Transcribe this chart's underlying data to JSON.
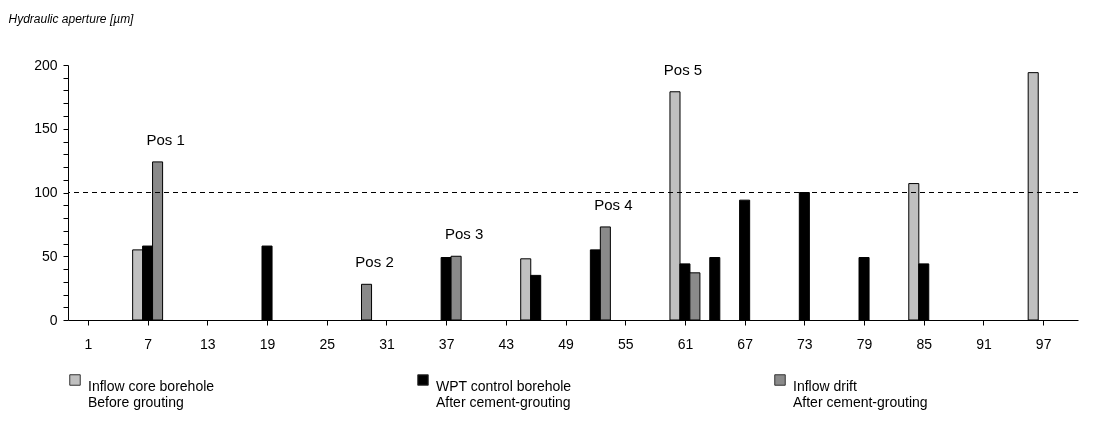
{
  "chart_data": {
    "type": "bar",
    "ylabel": "Hydraulic aperture [µm]",
    "xlim": [
      -0.5,
      100
    ],
    "xticks": [
      1,
      7,
      13,
      19,
      25,
      31,
      37,
      43,
      49,
      55,
      61,
      67,
      73,
      79,
      85,
      91,
      97
    ],
    "ylim": [
      0,
      200
    ],
    "yticks": [
      0,
      {
        "value": 10,
        "label": null
      },
      {
        "value": 20,
        "label": null
      },
      {
        "value": 30,
        "label": null
      },
      {
        "value": 40,
        "label": null
      },
      50,
      {
        "value": 60,
        "label": null
      },
      {
        "value": 70,
        "label": null
      },
      {
        "value": 80,
        "label": null
      },
      {
        "value": 90,
        "label": null
      },
      100,
      {
        "value": 110,
        "label": null
      },
      {
        "value": 120,
        "label": null
      },
      {
        "value": 130,
        "label": null
      },
      {
        "value": 140,
        "label": null
      },
      150,
      {
        "value": 160,
        "label": null
      },
      {
        "value": 170,
        "label": null
      },
      {
        "value": 180,
        "label": null
      },
      {
        "value": 190,
        "label": null
      },
      200
    ],
    "series": [
      {
        "name": "Inflow core borehole\nBefore grouting",
        "color": "#c0c0c0",
        "x": [
          6,
          45,
          60,
          84,
          96
        ],
        "values": [
          55,
          48,
          179,
          107,
          194
        ]
      },
      {
        "name": "WPT control borehole\nAfter cement-grouting",
        "color": "#000000",
        "x": [
          7,
          19,
          37,
          46,
          52,
          61,
          64,
          67,
          73,
          79,
          85
        ],
        "values": [
          58,
          58,
          49,
          35,
          55,
          44,
          49,
          94,
          100,
          49,
          44
        ]
      },
      {
        "name": "Inflow drift\nAfter cement-grouting",
        "color": "#8a8a8a",
        "x": [
          8,
          29,
          38,
          53,
          62
        ],
        "values": [
          124,
          28,
          50,
          73,
          37
        ]
      }
    ],
    "ref_lines": [
      {
        "axis": "y",
        "value": 100,
        "line_style": "dashed",
        "color": "#000000"
      }
    ],
    "annotations": [
      {
        "text": "Pos 1",
        "x": 8,
        "y": 124
      },
      {
        "text": "Pos 2",
        "x": 29,
        "y": 28
      },
      {
        "text": "Pos 3",
        "x": 38,
        "y": 50
      },
      {
        "text": "Pos 4",
        "x": 53,
        "y": 73
      },
      {
        "text": "Pos 5",
        "x": 60,
        "y": 179
      }
    ],
    "grid": false,
    "legend": "bottom"
  }
}
